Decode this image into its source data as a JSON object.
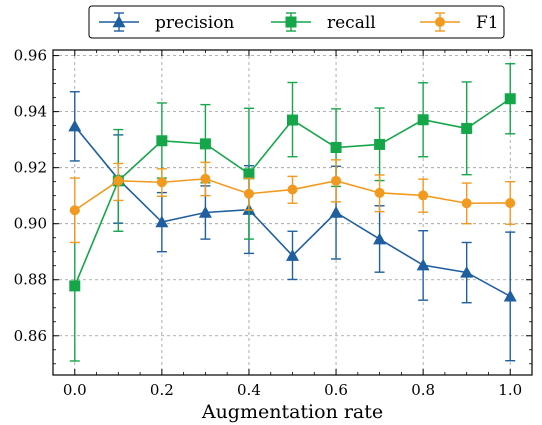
{
  "chart_data": {
    "type": "line",
    "title": "",
    "xlabel": "Augmentation rate",
    "ylabel": "",
    "xlim": [
      -0.05,
      1.05
    ],
    "ylim": [
      0.846,
      0.962
    ],
    "grid": true,
    "grid_style": "dashed",
    "legend_position": "top-center",
    "x": [
      0.0,
      0.1,
      0.2,
      0.3,
      0.4,
      0.5,
      0.6,
      0.7,
      0.8,
      0.9,
      1.0
    ],
    "x_ticks": [
      "0.0",
      "0.2",
      "0.4",
      "0.6",
      "0.8",
      "1.0"
    ],
    "y_ticks": [
      "0.86",
      "0.88",
      "0.90",
      "0.92",
      "0.94",
      "0.96"
    ],
    "series": [
      {
        "name": "precision",
        "color": "#1f5fa0",
        "marker": "triangle",
        "values": [
          0.9348,
          0.9159,
          0.9006,
          0.904,
          0.905,
          0.8886,
          0.904,
          0.8945,
          0.8852,
          0.8826,
          0.8741
        ],
        "err_low": [
          0.9224,
          0.9002,
          0.89,
          0.8945,
          0.8894,
          0.8801,
          0.8874,
          0.8827,
          0.8727,
          0.8718,
          0.8511
        ],
        "err_high": [
          0.9471,
          0.9317,
          0.9111,
          0.9135,
          0.9207,
          0.8973,
          0.9205,
          0.9064,
          0.8975,
          0.8933,
          0.897
        ]
      },
      {
        "name": "recall",
        "color": "#15a64a",
        "marker": "square",
        "values": [
          0.8778,
          0.9153,
          0.9296,
          0.9285,
          0.9178,
          0.937,
          0.9272,
          0.9283,
          0.9371,
          0.934,
          0.9446
        ],
        "err_low": [
          0.851,
          0.8973,
          0.9163,
          0.9146,
          0.8945,
          0.9239,
          0.9133,
          0.9154,
          0.9239,
          0.9175,
          0.9321
        ],
        "err_high": [
          0.9046,
          0.9336,
          0.9431,
          0.9425,
          0.9412,
          0.9504,
          0.941,
          0.9413,
          0.9503,
          0.9506,
          0.9571
        ]
      },
      {
        "name": "F1",
        "color": "#f29a1f",
        "marker": "circle",
        "values": [
          0.9048,
          0.9153,
          0.9148,
          0.916,
          0.9107,
          0.9122,
          0.9153,
          0.911,
          0.9101,
          0.9073,
          0.9074
        ],
        "err_low": [
          0.8933,
          0.9083,
          0.9098,
          0.91,
          0.9049,
          0.9073,
          0.9078,
          0.9043,
          0.9041,
          0.9,
          0.8998
        ],
        "err_high": [
          0.9163,
          0.9215,
          0.9196,
          0.9219,
          0.9162,
          0.9169,
          0.9228,
          0.9174,
          0.9159,
          0.9145,
          0.915
        ]
      }
    ]
  }
}
